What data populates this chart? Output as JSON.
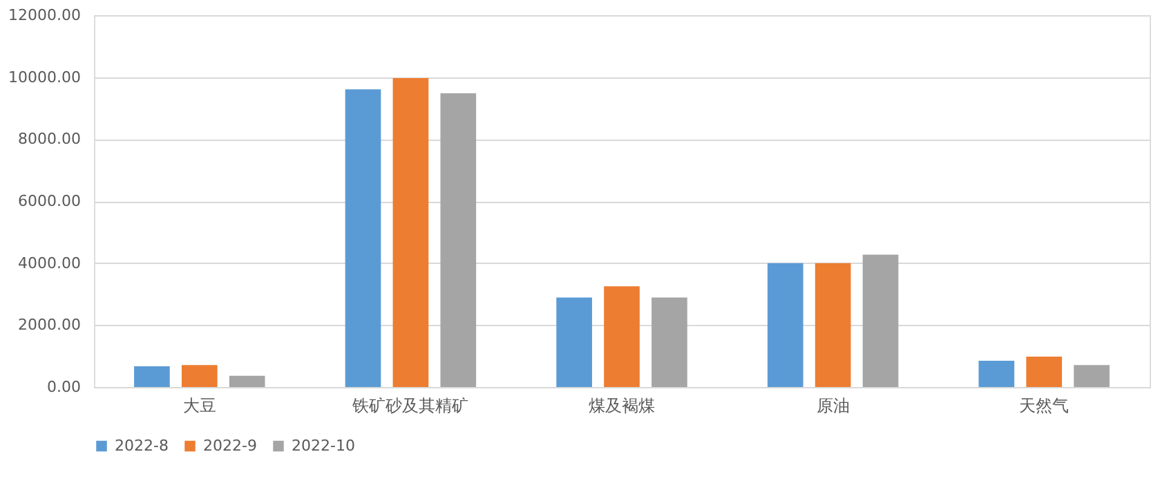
{
  "chart_data": {
    "type": "bar",
    "categories": [
      "大豆",
      "铁矿砂及其精矿",
      "煤及褐煤",
      "原油",
      "天然气"
    ],
    "series": [
      {
        "name": "2022-8",
        "color": "#5b9bd5",
        "values": [
          670,
          9610,
          2890,
          4000,
          850
        ]
      },
      {
        "name": "2022-9",
        "color": "#ed7d31",
        "values": [
          710,
          9970,
          3250,
          4000,
          980
        ]
      },
      {
        "name": "2022-10",
        "color": "#a5a5a5",
        "values": [
          360,
          9480,
          2890,
          4270,
          710
        ]
      }
    ],
    "ylim": [
      0,
      12000
    ],
    "yticks": [
      {
        "value": 0,
        "label": "0.00"
      },
      {
        "value": 2000,
        "label": "2000.00"
      },
      {
        "value": 4000,
        "label": "4000.00"
      },
      {
        "value": 6000,
        "label": "6000.00"
      },
      {
        "value": 8000,
        "label": "8000.00"
      },
      {
        "value": 10000,
        "label": "10000.00"
      },
      {
        "value": 12000,
        "label": "12000.00"
      }
    ],
    "grid": "y",
    "legend": "bottom"
  }
}
